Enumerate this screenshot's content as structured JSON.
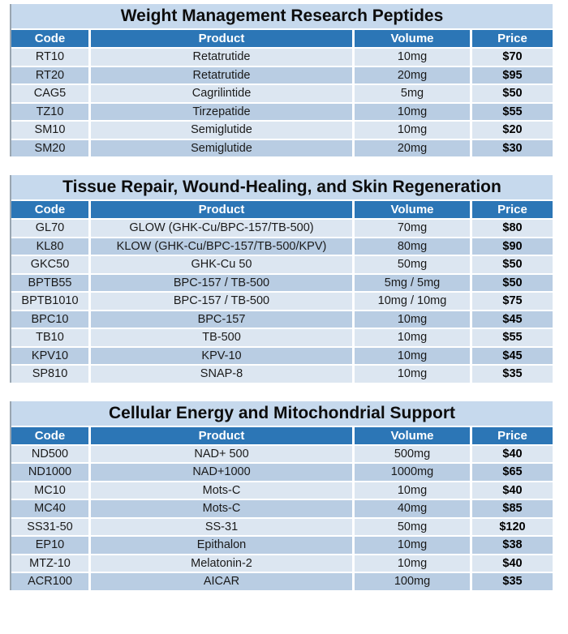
{
  "colors": {
    "header_bg": "#2c76b6",
    "header_text": "#ffffff",
    "title_bg": "#c6d9ed",
    "row_light": "#dce6f1",
    "row_dark": "#b9cde3",
    "table_edge": "#9aa6b1"
  },
  "tables": [
    {
      "title": "Weight Management Research Peptides",
      "headers": [
        "Code",
        "Product",
        "Volume",
        "Price"
      ],
      "rows": [
        {
          "code": "RT10",
          "product": "Retatrutide",
          "volume": "10mg",
          "price": "$70"
        },
        {
          "code": "RT20",
          "product": "Retatrutide",
          "volume": "20mg",
          "price": "$95"
        },
        {
          "code": "CAG5",
          "product": "Cagrilintide",
          "volume": "5mg",
          "price": "$50"
        },
        {
          "code": "TZ10",
          "product": "Tirzepatide",
          "volume": "10mg",
          "price": "$55"
        },
        {
          "code": "SM10",
          "product": "Semiglutide",
          "volume": "10mg",
          "price": "$20"
        },
        {
          "code": "SM20",
          "product": "Semiglutide",
          "volume": "20mg",
          "price": "$30"
        }
      ]
    },
    {
      "title": "Tissue Repair, Wound-Healing, and Skin Regeneration",
      "headers": [
        "Code",
        "Product",
        "Volume",
        "Price"
      ],
      "rows": [
        {
          "code": "GL70",
          "product": "GLOW (GHK-Cu/BPC-157/TB-500)",
          "volume": "70mg",
          "price": "$80"
        },
        {
          "code": "KL80",
          "product": "KLOW (GHK-Cu/BPC-157/TB-500/KPV)",
          "volume": "80mg",
          "price": "$90"
        },
        {
          "code": "GKC50",
          "product": "GHK-Cu 50",
          "volume": "50mg",
          "price": "$50"
        },
        {
          "code": "BPTB55",
          "product": "BPC-157 / TB-500",
          "volume": "5mg / 5mg",
          "price": "$50"
        },
        {
          "code": "BPTB1010",
          "product": "BPC-157 / TB-500",
          "volume": "10mg / 10mg",
          "price": "$75"
        },
        {
          "code": "BPC10",
          "product": "BPC-157",
          "volume": "10mg",
          "price": "$45"
        },
        {
          "code": "TB10",
          "product": "TB-500",
          "volume": "10mg",
          "price": "$55"
        },
        {
          "code": "KPV10",
          "product": "KPV-10",
          "volume": "10mg",
          "price": "$45"
        },
        {
          "code": "SP810",
          "product": "SNAP-8",
          "volume": "10mg",
          "price": "$35"
        }
      ]
    },
    {
      "title": "Cellular Energy and Mitochondrial Support",
      "headers": [
        "Code",
        "Product",
        "Volume",
        "Price"
      ],
      "rows": [
        {
          "code": "ND500",
          "product": "NAD+ 500",
          "volume": "500mg",
          "price": "$40"
        },
        {
          "code": "ND1000",
          "product": "NAD+1000",
          "volume": "1000mg",
          "price": "$65"
        },
        {
          "code": "MC10",
          "product": "Mots-C",
          "volume": "10mg",
          "price": "$40"
        },
        {
          "code": "MC40",
          "product": "Mots-C",
          "volume": "40mg",
          "price": "$85"
        },
        {
          "code": "SS31-50",
          "product": "SS-31",
          "volume": "50mg",
          "price": "$120"
        },
        {
          "code": "EP10",
          "product": "Epithalon",
          "volume": "10mg",
          "price": "$38"
        },
        {
          "code": "MTZ-10",
          "product": "Melatonin-2",
          "volume": "10mg",
          "price": "$40"
        },
        {
          "code": "ACR100",
          "product": "AICAR",
          "volume": "100mg",
          "price": "$35"
        }
      ]
    }
  ]
}
